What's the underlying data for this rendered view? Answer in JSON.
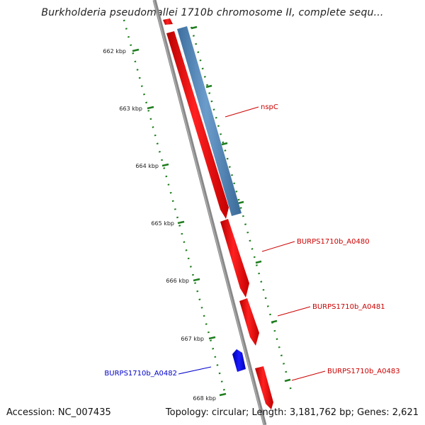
{
  "title": "Burkholderia pseudomallei 1710b chromosome II, complete sequ...",
  "footer": {
    "accession": "Accession: NC_007435",
    "summary": "Topology: circular; Length: 3,181,762 bp; Genes: 2,621"
  },
  "colors": {
    "background": "#ffffff",
    "backbone": "#888888",
    "forward_gene": "#ff0000",
    "reverse_gene": "#0000ff",
    "cds_feature": "#4f81b5",
    "tick": "#1e7d1e",
    "forward_label": "#cc0000",
    "reverse_label": "#0000cc"
  },
  "scale_labels": [
    "662 kbp",
    "663 kbp",
    "664 kbp",
    "665 kbp",
    "666 kbp",
    "667 kbp",
    "668 kbp"
  ],
  "gene_labels": [
    {
      "name": "nspC",
      "strand": "forward"
    },
    {
      "name": "BURPS1710b_A0480",
      "strand": "forward"
    },
    {
      "name": "BURPS1710b_A0481",
      "strand": "forward"
    },
    {
      "name": "BURPS1710b_A0482",
      "strand": "reverse"
    },
    {
      "name": "BURPS1710b_A0483",
      "strand": "forward"
    }
  ]
}
